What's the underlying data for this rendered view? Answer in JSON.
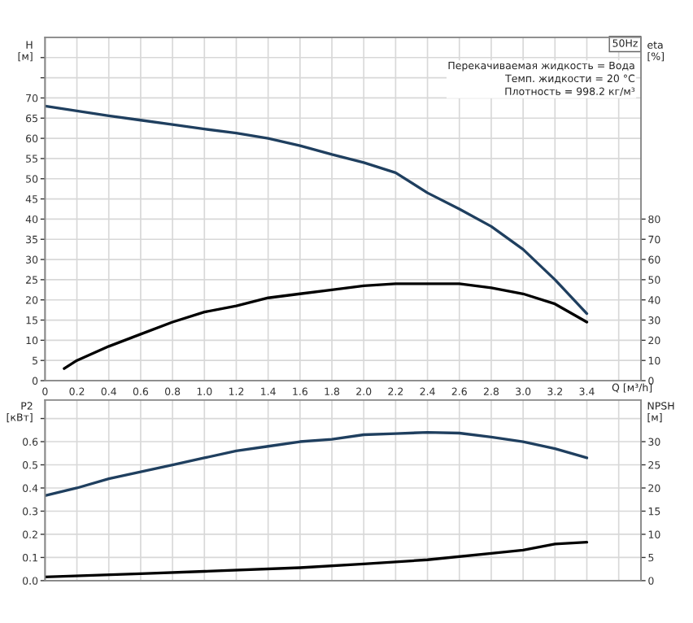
{
  "chart_data": [
    {
      "type": "line",
      "xlabel": "Q [м³/h]",
      "ylabel": "H\n[м]",
      "y2label": "eta\n[%]",
      "annotations": [
        "50Hz",
        "Перекачиваемая жидкость = Вода\nТемп. жидкости = 20 °C\nПлотность = 998.2 кг/м³"
      ],
      "xlim": [
        0,
        3.74
      ],
      "xticks": [
        0,
        0.2,
        0.4,
        0.6,
        0.8,
        {
          "value": 1,
          "label": "1.0"
        },
        1.2,
        1.4,
        1.6,
        1.8,
        {
          "value": 2,
          "label": "2.0"
        },
        2.2,
        2.4,
        2.6,
        2.8,
        {
          "value": 3,
          "label": "3.0"
        },
        3.2,
        3.4,
        {
          "value": 3.6,
          "label": null
        }
      ],
      "ylim": [
        0,
        85
      ],
      "yticks": [
        0,
        5,
        10,
        15,
        20,
        25,
        30,
        35,
        40,
        45,
        50,
        55,
        60,
        65,
        70,
        {
          "value": 75,
          "label": null
        },
        {
          "value": 80,
          "label": null
        }
      ],
      "y2lim": [
        0,
        170
      ],
      "y2ticks": [
        0,
        10,
        20,
        30,
        40,
        50,
        60,
        70,
        80
      ],
      "grid": true,
      "legend": false,
      "marker": "none",
      "line_style": "solid",
      "series": [
        {
          "color": "#1f3f5f",
          "x": [
            0,
            0.2,
            0.4,
            0.6,
            0.8,
            1.0,
            1.2,
            1.4,
            1.6,
            1.8,
            2.0,
            2.2,
            2.4,
            2.6,
            2.8,
            3.0,
            3.2,
            3.4
          ],
          "values": [
            68,
            66.8,
            65.6,
            64.5,
            63.4,
            62.3,
            61.3,
            60,
            58.2,
            56,
            54,
            51.5,
            46.5,
            42.5,
            38.2,
            32.5,
            25,
            16.6
          ]
        },
        {
          "color": "#000000",
          "axis": "y2",
          "x": [
            0.12,
            0.2,
            0.4,
            0.6,
            0.8,
            1.0,
            1.2,
            1.4,
            1.6,
            1.8,
            2.0,
            2.2,
            2.4,
            2.6,
            2.8,
            3.0,
            3.2,
            3.4
          ],
          "values": [
            6,
            10,
            17,
            23,
            29,
            34,
            37,
            41,
            43,
            45,
            47,
            48,
            48,
            48,
            46,
            43,
            38,
            29
          ]
        }
      ]
    },
    {
      "type": "line",
      "ylabel": "P2\n[кВт]",
      "y2label": "NPSH\n[м]",
      "tick_labels": "y",
      "xlim": [
        0,
        3.74
      ],
      "ylim": [
        0,
        0.78
      ],
      "yticks": [
        {
          "value": 0,
          "label": "0.0"
        },
        0.1,
        0.2,
        0.3,
        0.4,
        0.5,
        0.6,
        {
          "value": 0.7,
          "label": null
        }
      ],
      "y2lim": [
        0,
        39
      ],
      "y2ticks": [
        0,
        5,
        10,
        15,
        20,
        25,
        30
      ],
      "grid": true,
      "legend": false,
      "marker": "none",
      "line_style": "solid",
      "series": [
        {
          "color": "#1f3f5f",
          "x": [
            0,
            0.2,
            0.4,
            0.6,
            0.8,
            1.0,
            1.2,
            1.4,
            1.6,
            1.8,
            2.0,
            2.2,
            2.4,
            2.6,
            2.8,
            3.0,
            3.2,
            3.4
          ],
          "values": [
            0.367,
            0.4,
            0.44,
            0.47,
            0.5,
            0.53,
            0.56,
            0.58,
            0.6,
            0.61,
            0.63,
            0.635,
            0.64,
            0.637,
            0.62,
            0.6,
            0.57,
            0.53
          ]
        },
        {
          "color": "#000000",
          "axis": "y2",
          "x": [
            0,
            0.6,
            1.0,
            1.6,
            2.0,
            2.4,
            2.8,
            3.0,
            3.2,
            3.4
          ],
          "values": [
            0.8,
            1.5,
            2,
            2.8,
            3.6,
            4.5,
            5.9,
            6.6,
            7.9,
            8.3
          ]
        }
      ]
    }
  ]
}
